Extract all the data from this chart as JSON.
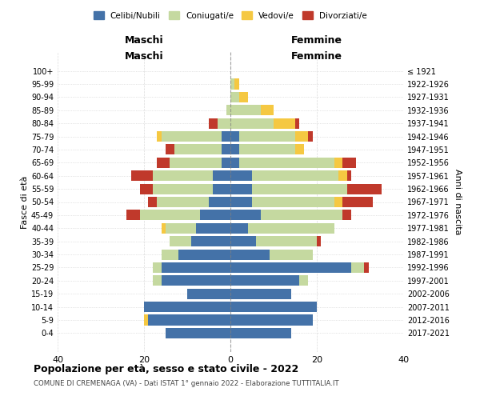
{
  "age_groups": [
    "0-4",
    "5-9",
    "10-14",
    "15-19",
    "20-24",
    "25-29",
    "30-34",
    "35-39",
    "40-44",
    "45-49",
    "50-54",
    "55-59",
    "60-64",
    "65-69",
    "70-74",
    "75-79",
    "80-84",
    "85-89",
    "90-94",
    "95-99",
    "100+"
  ],
  "birth_years": [
    "2017-2021",
    "2012-2016",
    "2007-2011",
    "2002-2006",
    "1997-2001",
    "1992-1996",
    "1987-1991",
    "1982-1986",
    "1977-1981",
    "1972-1976",
    "1967-1971",
    "1962-1966",
    "1957-1961",
    "1952-1956",
    "1947-1951",
    "1942-1946",
    "1937-1941",
    "1932-1936",
    "1927-1931",
    "1922-1926",
    "≤ 1921"
  ],
  "maschi": {
    "celibi": [
      15,
      19,
      20,
      10,
      16,
      16,
      12,
      9,
      8,
      7,
      5,
      4,
      4,
      2,
      2,
      2,
      0,
      0,
      0,
      0,
      0
    ],
    "coniugati": [
      0,
      0,
      0,
      0,
      2,
      2,
      4,
      5,
      7,
      14,
      12,
      14,
      14,
      12,
      11,
      14,
      3,
      1,
      0,
      0,
      0
    ],
    "vedovi": [
      0,
      1,
      0,
      0,
      0,
      0,
      0,
      0,
      1,
      0,
      0,
      0,
      0,
      0,
      0,
      1,
      0,
      0,
      0,
      0,
      0
    ],
    "divorziati": [
      0,
      0,
      0,
      0,
      0,
      0,
      0,
      0,
      0,
      3,
      2,
      3,
      5,
      3,
      2,
      0,
      2,
      0,
      0,
      0,
      0
    ]
  },
  "femmine": {
    "celibi": [
      14,
      19,
      20,
      14,
      16,
      28,
      9,
      6,
      4,
      7,
      5,
      5,
      5,
      2,
      2,
      2,
      0,
      0,
      0,
      0,
      0
    ],
    "coniugati": [
      0,
      0,
      0,
      0,
      2,
      3,
      10,
      14,
      20,
      19,
      19,
      22,
      20,
      22,
      13,
      13,
      10,
      7,
      2,
      1,
      0
    ],
    "vedovi": [
      0,
      0,
      0,
      0,
      0,
      0,
      0,
      0,
      0,
      0,
      2,
      0,
      2,
      2,
      2,
      3,
      5,
      3,
      2,
      1,
      0
    ],
    "divorziati": [
      0,
      0,
      0,
      0,
      0,
      1,
      0,
      1,
      0,
      2,
      7,
      8,
      1,
      3,
      0,
      1,
      1,
      0,
      0,
      0,
      0
    ]
  },
  "colors": {
    "celibi": "#4472a8",
    "coniugati": "#c5d9a0",
    "vedovi": "#f5c842",
    "divorziati": "#c0392b"
  },
  "xlim": 40,
  "title": "Popolazione per età, sesso e stato civile - 2022",
  "subtitle": "COMUNE DI CREMENAGA (VA) - Dati ISTAT 1° gennaio 2022 - Elaborazione TUTTITALIA.IT",
  "xlabel_left": "Maschi",
  "xlabel_right": "Femmine",
  "ylabel_left": "Fasce di età",
  "ylabel_right": "Anni di nascita",
  "legend_labels": [
    "Celibi/Nubili",
    "Coniugati/e",
    "Vedovi/e",
    "Divorziati/e"
  ],
  "background_color": "#ffffff",
  "grid_color": "#cccccc"
}
